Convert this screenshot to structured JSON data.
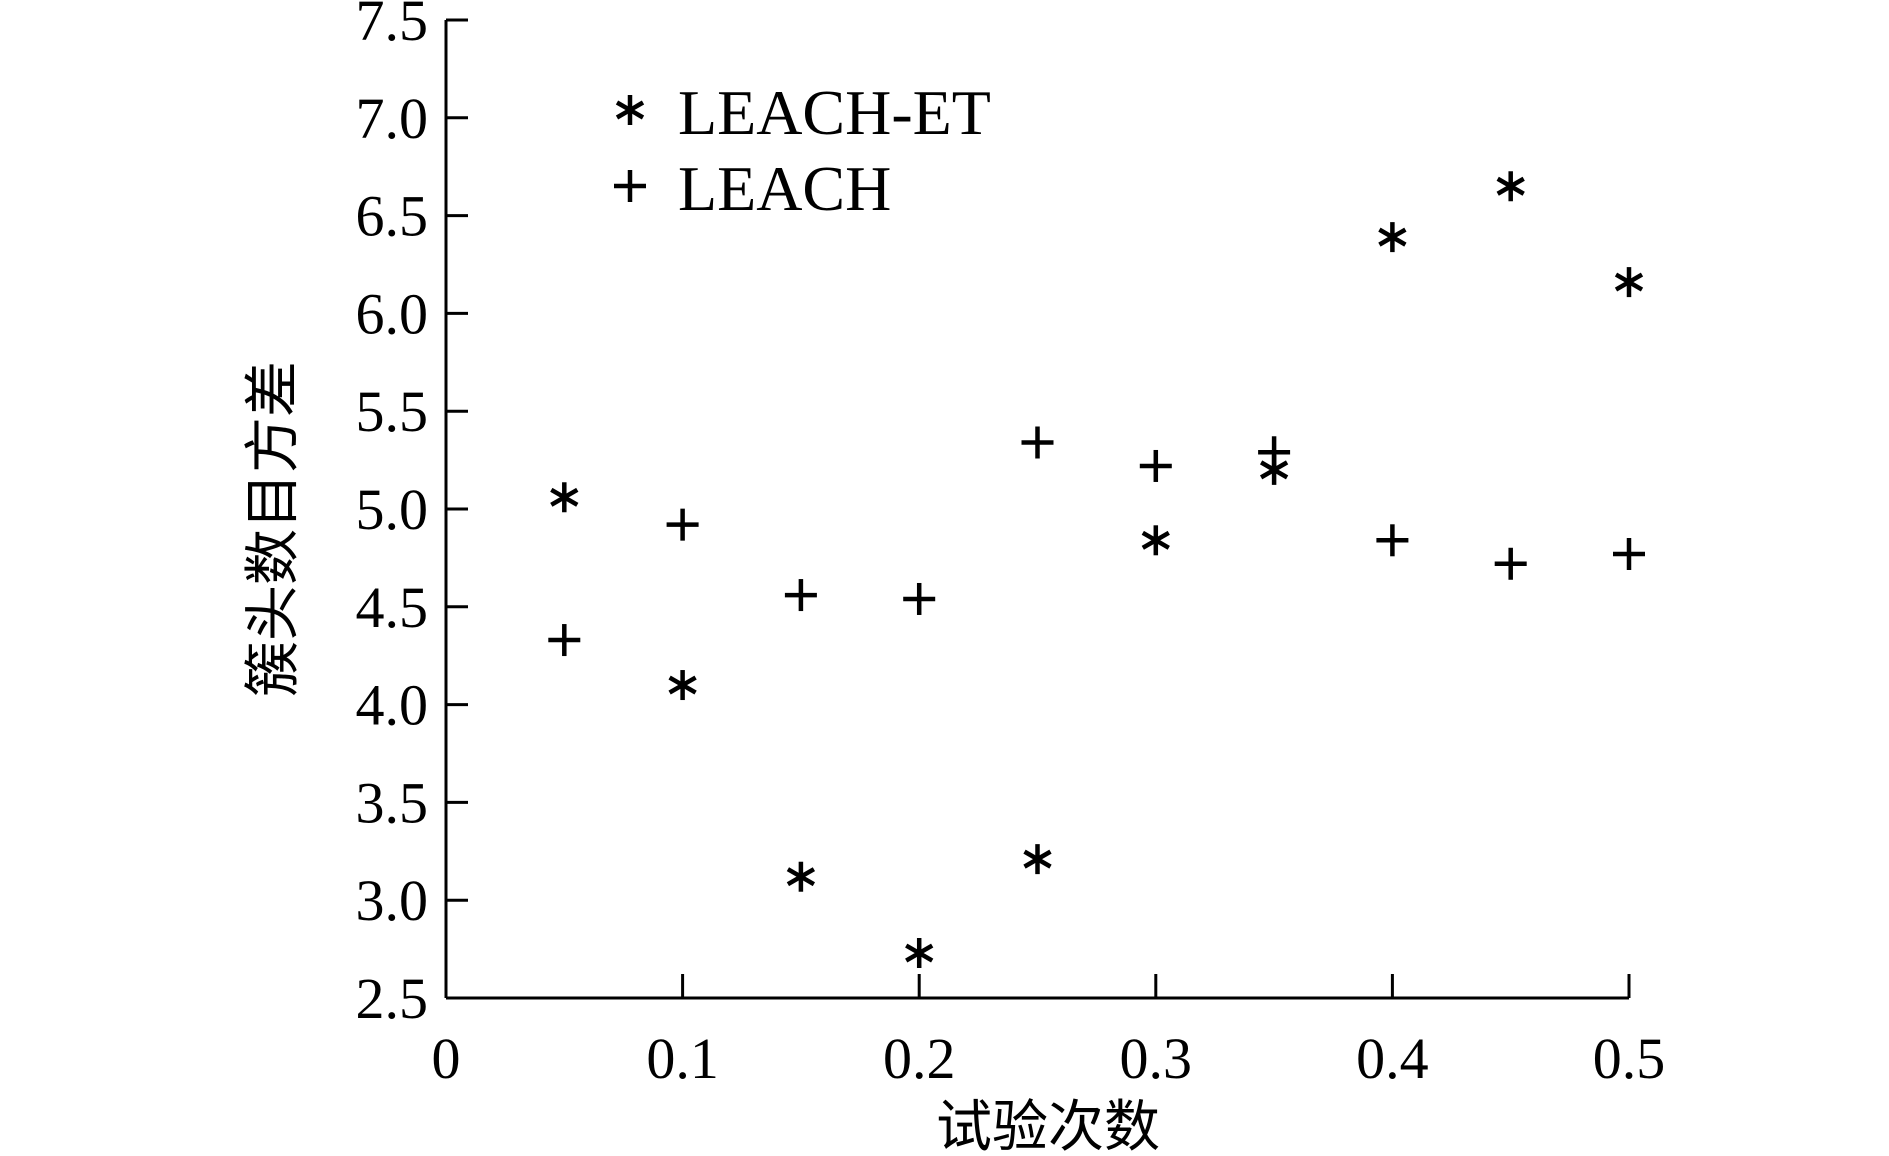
{
  "chart_data": {
    "type": "scatter",
    "title": "",
    "xlabel": "试验次数",
    "ylabel": "簇头数目方差",
    "xlim": [
      0,
      0.5
    ],
    "ylim": [
      2.5,
      7.5
    ],
    "xticks": [
      "0",
      "0.1",
      "0.2",
      "0.3",
      "0.4",
      "0.5"
    ],
    "xtick_values": [
      0,
      0.1,
      0.2,
      0.3,
      0.4,
      0.5
    ],
    "yticks": [
      "2.5",
      "3.0",
      "3.5",
      "4.0",
      "4.5",
      "5.0",
      "5.5",
      "6.0",
      "6.5",
      "7.0",
      "7.5"
    ],
    "ytick_values": [
      2.5,
      3.0,
      3.5,
      4.0,
      4.5,
      5.0,
      5.5,
      6.0,
      6.5,
      7.0,
      7.5
    ],
    "grid": false,
    "legend_position": "top-left",
    "series": [
      {
        "name": "LEACH-ET",
        "marker": "asterisk",
        "x": [
          0.05,
          0.1,
          0.15,
          0.2,
          0.25,
          0.3,
          0.35,
          0.4,
          0.45,
          0.5
        ],
        "y": [
          5.06,
          4.1,
          3.12,
          2.73,
          3.21,
          4.84,
          5.2,
          6.39,
          6.65,
          6.16
        ]
      },
      {
        "name": "LEACH",
        "marker": "plus",
        "x": [
          0.05,
          0.1,
          0.15,
          0.2,
          0.25,
          0.3,
          0.35,
          0.4,
          0.45,
          0.5
        ],
        "y": [
          4.33,
          4.92,
          4.56,
          4.54,
          5.34,
          5.22,
          5.29,
          4.84,
          4.72,
          4.77
        ]
      }
    ]
  }
}
